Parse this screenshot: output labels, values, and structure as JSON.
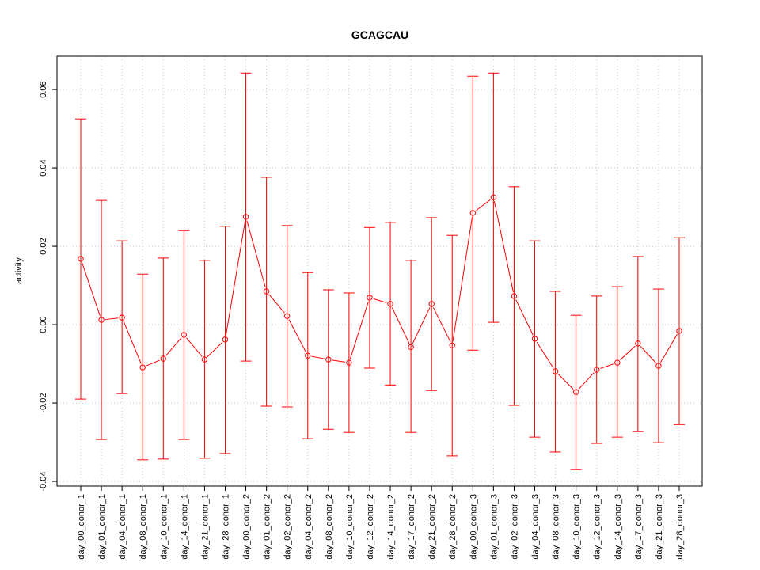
{
  "chart_data": {
    "type": "line",
    "title": "GCAGCAU",
    "xlabel": "",
    "ylabel": "activity",
    "ylim": [
      -0.0412,
      0.0685
    ],
    "yticks": [
      -0.04,
      -0.02,
      0.0,
      0.02,
      0.04,
      0.06
    ],
    "ytick_labels": [
      "-0.04",
      "-0.02",
      "0.00",
      "0.02",
      "0.04",
      "0.06"
    ],
    "grid": true,
    "color": "#ff0000",
    "categories": [
      "day_00_donor_1",
      "day_01_donor_1",
      "day_04_donor_1",
      "day_08_donor_1",
      "day_10_donor_1",
      "day_14_donor_1",
      "day_21_donor_1",
      "day_28_donor_1",
      "day_00_donor_2",
      "day_01_donor_2",
      "day_02_donor_2",
      "day_04_donor_2",
      "day_08_donor_2",
      "day_10_donor_2",
      "day_12_donor_2",
      "day_14_donor_2",
      "day_17_donor_2",
      "day_21_donor_2",
      "day_28_donor_2",
      "day_00_donor_3",
      "day_01_donor_3",
      "day_02_donor_3",
      "day_04_donor_3",
      "day_08_donor_3",
      "day_10_donor_3",
      "day_12_donor_3",
      "day_14_donor_3",
      "day_17_donor_3",
      "day_21_donor_3",
      "day_28_donor_3"
    ],
    "values": [
      0.0168,
      0.0012,
      0.0018,
      -0.0109,
      -0.0087,
      -0.0026,
      -0.0089,
      -0.0038,
      0.0275,
      0.0085,
      0.0022,
      -0.0079,
      -0.0089,
      -0.0097,
      0.0069,
      0.0053,
      -0.0057,
      0.0053,
      -0.0053,
      0.0285,
      0.0325,
      0.0073,
      -0.0036,
      -0.0119,
      -0.0172,
      -0.0115,
      -0.0097,
      -0.0048,
      -0.0105,
      -0.0016
    ],
    "upper": [
      0.0525,
      0.0317,
      0.0214,
      0.0129,
      0.017,
      0.024,
      0.0164,
      0.0251,
      0.0642,
      0.0376,
      0.0253,
      0.0133,
      0.0089,
      0.0081,
      0.0248,
      0.0261,
      0.0164,
      0.0273,
      0.0228,
      0.0634,
      0.0642,
      0.0352,
      0.0214,
      0.0085,
      0.0024,
      0.0073,
      0.0097,
      0.0174,
      0.0091,
      0.0222
    ],
    "lower": [
      -0.019,
      -0.0293,
      -0.0176,
      -0.0345,
      -0.0343,
      -0.0293,
      -0.0341,
      -0.0329,
      -0.0093,
      -0.0208,
      -0.021,
      -0.0291,
      -0.0267,
      -0.0275,
      -0.0111,
      -0.0154,
      -0.0275,
      -0.0168,
      -0.0335,
      -0.0065,
      0.0006,
      -0.0206,
      -0.0287,
      -0.0325,
      -0.037,
      -0.0303,
      -0.0287,
      -0.0273,
      -0.0301,
      -0.0255
    ]
  }
}
